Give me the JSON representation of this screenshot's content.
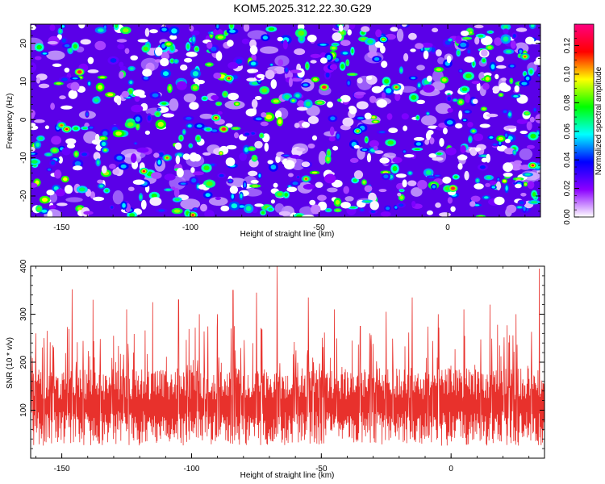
{
  "title": "KOM5.2025.312.22.30.G29",
  "colors": {
    "snr_line": "#e8312c",
    "axis": "#000000",
    "background": "#ffffff"
  },
  "chart_data": [
    {
      "type": "heatmap",
      "title": "KOM5.2025.312.22.30.G29",
      "xlabel": "Height of straight line (km)",
      "ylabel": "Frequency (Hz)",
      "xlim": [
        -162,
        36
      ],
      "ylim": [
        -25.5,
        25
      ],
      "x_ticks": [
        -150,
        -100,
        -50,
        0
      ],
      "x_tick_labels": [
        "-150",
        "-100",
        "-50",
        "0"
      ],
      "y_ticks": [
        -20,
        -10,
        0,
        10,
        20
      ],
      "y_tick_labels": [
        "-20",
        "-10",
        "0",
        "10",
        "20"
      ],
      "colorbar": {
        "label": "Normalized spectral amplitude",
        "range": [
          0,
          0.135
        ],
        "ticks": [
          0,
          0.02,
          0.04,
          0.06,
          0.08,
          0.1,
          0.12
        ],
        "tick_labels": [
          "0.00",
          "0.02",
          "0.04",
          "0.06",
          "0.08",
          "0.10",
          "0.12"
        ],
        "colormap": [
          "#ffffff",
          "#8b00ff",
          "#0000ff",
          "#00ffff",
          "#00ff00",
          "#ffff00",
          "#ff0000",
          "#ff0080"
        ]
      },
      "hotspots": [
        {
          "x": -143,
          "y": 12.5,
          "v": 0.13
        },
        {
          "x": -85,
          "y": 10.8,
          "v": 0.12
        },
        {
          "x": -48,
          "y": 8.5,
          "v": 0.13
        },
        {
          "x": -20,
          "y": 8.5,
          "v": 0.11
        },
        {
          "x": -90,
          "y": 0.5,
          "v": 0.12
        },
        {
          "x": -87,
          "y": -2.5,
          "v": 0.13
        },
        {
          "x": -150,
          "y": -1.5,
          "v": 0.11
        },
        {
          "x": -148,
          "y": -2.5,
          "v": 0.12
        },
        {
          "x": -109,
          "y": -10,
          "v": 0.11
        },
        {
          "x": -118,
          "y": -13.5,
          "v": 0.12
        },
        {
          "x": -99,
          "y": -25,
          "v": 0.12
        },
        {
          "x": -55,
          "y": -15.5,
          "v": 0.11
        },
        {
          "x": 2,
          "y": -18,
          "v": 0.13
        },
        {
          "x": 33,
          "y": -12,
          "v": 0.12
        },
        {
          "x": 30,
          "y": 16.5,
          "v": 0.11
        },
        {
          "x": -35,
          "y": -3,
          "v": 0.1
        },
        {
          "x": -25,
          "y": 21,
          "v": 0.1
        },
        {
          "x": -133,
          "y": -8,
          "v": 0.09
        },
        {
          "x": -60,
          "y": 5,
          "v": 0.09
        },
        {
          "x": 10,
          "y": -3,
          "v": 0.09
        }
      ]
    },
    {
      "type": "line",
      "xlabel": "Height of straight line (km)",
      "ylabel": "SNR (10 * v/v)",
      "xlim": [
        -162,
        36
      ],
      "ylim": [
        0,
        400
      ],
      "x_ticks": [
        -150,
        -100,
        -50,
        0
      ],
      "x_tick_labels": [
        "-150",
        "-100",
        "-50",
        "0"
      ],
      "y_ticks": [
        100,
        200,
        300,
        400
      ],
      "y_tick_labels": [
        "100",
        "200",
        "300",
        "400"
      ],
      "series": [
        {
          "name": "SNR",
          "base_mean": 110,
          "typical_spread": 60,
          "peaks": [
            {
              "x": -160,
              "y": 260
            },
            {
              "x": -146,
              "y": 352
            },
            {
              "x": -138,
              "y": 330
            },
            {
              "x": -130,
              "y": 255
            },
            {
              "x": -125,
              "y": 310
            },
            {
              "x": -115,
              "y": 325
            },
            {
              "x": -105,
              "y": 330
            },
            {
              "x": -97,
              "y": 300
            },
            {
              "x": -90,
              "y": 300
            },
            {
              "x": -84,
              "y": 350
            },
            {
              "x": -75,
              "y": 345
            },
            {
              "x": -67,
              "y": 400
            },
            {
              "x": -55,
              "y": 335
            },
            {
              "x": -45,
              "y": 310
            },
            {
              "x": -35,
              "y": 275
            },
            {
              "x": -25,
              "y": 305
            },
            {
              "x": -15,
              "y": 335
            },
            {
              "x": -5,
              "y": 300
            },
            {
              "x": 5,
              "y": 310
            },
            {
              "x": 15,
              "y": 320
            },
            {
              "x": 25,
              "y": 300
            },
            {
              "x": 34,
              "y": 395
            }
          ]
        }
      ]
    }
  ]
}
